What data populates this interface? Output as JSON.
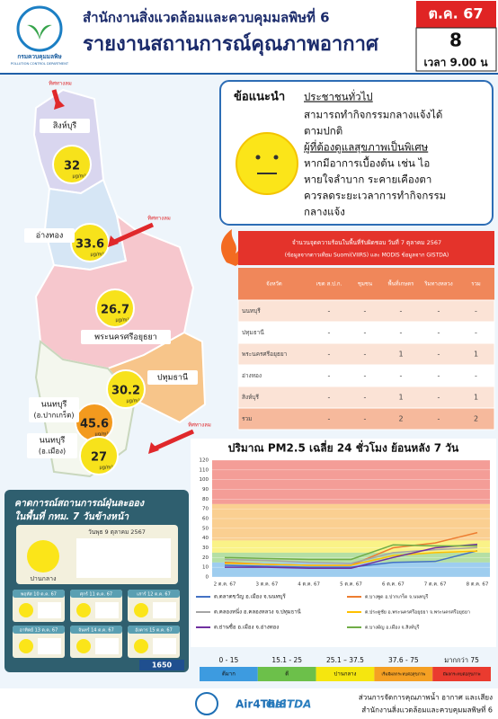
{
  "header": {
    "org_line": "สำนักงานสิ่งแวดล้อมและควบคุมมลพิษที่ 6",
    "title": "รายงานสถานการณ์คุณภาพอากาศ",
    "logo_name": "กรมควบคุมมลพิษ",
    "logo_name_en": "POLLUTION CONTROL DEPARTMENT",
    "month": "ต.ค. 67",
    "day": "8",
    "time": "เวลา 9.00 น"
  },
  "map": {
    "wind_label": "ทิศทางลม",
    "stations": [
      {
        "province": "สิงห์บุรี",
        "value": 32,
        "unit": "μg/m³",
        "color": "#f7e21b"
      },
      {
        "province": "อ่างทอง",
        "value": 33.6,
        "unit": "μg/m³",
        "color": "#f7e21b"
      },
      {
        "province": "พระนครศรีอยุธยา",
        "value": 26.7,
        "unit": "μg/m³",
        "color": "#f7e21b"
      },
      {
        "province": "ปทุมธานี",
        "value": 30.2,
        "unit": "μg/m³",
        "color": "#f7e21b"
      },
      {
        "province": "นนทบุรี",
        "district": "(อ.ปากเกร็ด)",
        "value": 45.6,
        "unit": "μg/m³",
        "color": "#f39a1e"
      },
      {
        "province": "นนทบุรี",
        "district": "(อ.เมือง)",
        "value": 27,
        "unit": "μg/m³",
        "color": "#f7e21b"
      }
    ]
  },
  "advice": {
    "title": "ข้อแนะนำ",
    "general_heading": "ประชาชนทั่วไป",
    "general_lines": [
      "สามารถทำกิจกรรมกลางแจ้งได้",
      "ตามปกติ"
    ],
    "sensitive_heading": "ผู้ที่ต้องดูแลสุขภาพเป็นพิเศษ",
    "sensitive_lines": [
      "หากมีอาการเบื้องต้น เช่น ไอ",
      "หายใจลำบาก ระคายเคืองตา",
      "ควรลดระยะเวลาการทำกิจกรรม",
      "กลางแจ้ง"
    ]
  },
  "hotspots": {
    "title": "จำนวนจุดความร้อนในพื้นที่รับผิดชอบ วันที่ 7 ตุลาคม 2567",
    "source": "(ข้อมูลจากดาวเทียม Suomi(VIIRS) และ MODIS ข้อมูลจาก GISTDA)",
    "columns": [
      "จังหวัด",
      "เขต ส.ป.ก.",
      "ชุมชน",
      "พื้นที่เกษตร",
      "ริมทางหลวง",
      "รวม"
    ],
    "rows": [
      [
        "นนทบุรี",
        "-",
        "-",
        "-",
        "-",
        "-"
      ],
      [
        "ปทุมธานี",
        "-",
        "-",
        "-",
        "-",
        "-"
      ],
      [
        "พระนครศรีอยุธยา",
        "-",
        "-",
        "1",
        "-",
        "1"
      ],
      [
        "อ่างทอง",
        "-",
        "-",
        "-",
        "-",
        "-"
      ],
      [
        "สิงห์บุรี",
        "-",
        "-",
        "1",
        "-",
        "1"
      ],
      [
        "รวม",
        "-",
        "-",
        "2",
        "-",
        "2"
      ]
    ]
  },
  "chart_data": {
    "type": "line",
    "title": "ปริมาณ PM2.5 เฉลี่ย 24 ชั่วโมง ย้อนหลัง 7 วัน",
    "categories": [
      "2 ต.ค. 67",
      "3 ต.ค. 67",
      "4 ต.ค. 67",
      "5 ต.ค. 67",
      "6 ต.ค. 67",
      "7 ต.ค. 67",
      "8 ต.ค. 67"
    ],
    "ylim": [
      0,
      120
    ],
    "yticks": [
      0,
      10,
      20,
      30,
      40,
      50,
      60,
      70,
      80,
      90,
      100,
      110,
      120
    ],
    "grid": true,
    "bands": [
      {
        "from": 0,
        "range": "0 - 15",
        "label": "ดีมาก",
        "color": "#3d9be0"
      },
      {
        "from": 15,
        "range": "15.1 - 25",
        "label": "ดี",
        "color": "#6cc04a"
      },
      {
        "from": 25,
        "range": "25.1 – 37.5",
        "label": "ปานกลาง",
        "color": "#f5e60f"
      },
      {
        "from": 37.5,
        "range": "37.6 - 75",
        "label": "เริ่มมีผลกระทบต่อสุขภาพ",
        "color": "#f5a023"
      },
      {
        "from": 75,
        "range": "มากกว่า 75",
        "label": "มีผลกระทบต่อสุขภาพ",
        "color": "#ea3b2f"
      }
    ],
    "series": [
      {
        "name": "ต.ตลาดขวัญ อ.เมือง จ.นนทบุรี",
        "color": "#4472c4",
        "values": [
          12,
          11,
          10,
          10,
          15,
          16,
          27
        ]
      },
      {
        "name": "ต.บางพูด อ.ปากเกร็ด จ.นนทบุรี",
        "color": "#ed7d31",
        "values": [
          15,
          13,
          12,
          12,
          30,
          35,
          45.6
        ]
      },
      {
        "name": "ต.คลองหนึ่ง อ.คลองหลวง จ.ปทุมธานี",
        "color": "#a5a5a5",
        "values": [
          18,
          17,
          15,
          14,
          25,
          28,
          30.2
        ]
      },
      {
        "name": "ต.ประตูชัย อ.พระนครศรีอยุธยา จ.พระนครศรีอยุธยา",
        "color": "#ffc000",
        "values": [
          14,
          13,
          12,
          12,
          22,
          25,
          26.7
        ]
      },
      {
        "name": "ต.ย่านซื่อ อ.เมือง จ.อ่างทอง",
        "color": "#7030a0",
        "values": [
          10,
          10,
          9,
          9,
          20,
          30,
          33.6
        ]
      },
      {
        "name": "ต.บางมัญ อ.เมือง จ.สิงห์บุรี",
        "color": "#70ad47",
        "values": [
          20,
          19,
          18,
          18,
          33,
          32,
          32
        ]
      }
    ]
  },
  "forecast": {
    "title_1": "คาดการณ์สถานการณ์ฝุ่นละออง",
    "title_2": "ในพื้นที่ กทม. 7 วันข้างหน้า",
    "today": "วันพุธ 9 ตุลาคม 2567",
    "today_level": "ปานกลาง",
    "days": [
      "พฤหัส 10 ต.ค. 67",
      "ศุกร์ 11 ต.ค. 67",
      "เสาร์ 12 ต.ค. 67",
      "อาทิตย์ 13 ต.ค. 67",
      "จันทร์ 14 ต.ค. 67",
      "อังคาร 15 ต.ค. 67"
    ],
    "hotline": "1650"
  },
  "footer": {
    "logos": [
      "Air4Thai",
      "GISTDA"
    ],
    "lines": [
      "ส่วนการจัดการคุณภาพน้ำ อากาศ และเสียง",
      "สำนักงานสิ่งแวดล้อมและควบคุมมลพิษที่ 6"
    ]
  }
}
